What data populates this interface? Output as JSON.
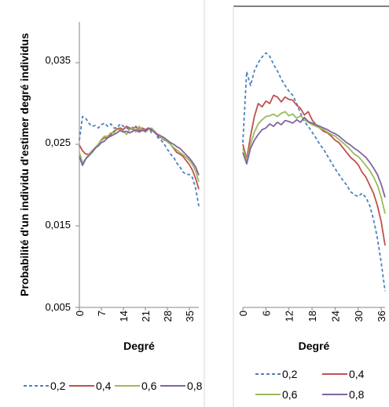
{
  "ylabel": "Probabilité d'un individu d'estimer degré  individus",
  "y_ticks": [
    "0,005",
    "0,015",
    "0,025",
    "0,035"
  ],
  "colors": {
    "0,2": "#4f81bd",
    "0,4": "#c0504d",
    "0,6": "#9bbb59",
    "0,8": "#8064a2"
  },
  "chart_data": [
    {
      "type": "line",
      "xlabel": "Degré",
      "x_ticks": [
        "0",
        "7",
        "14",
        "21",
        "28",
        "35"
      ],
      "xlim": [
        0,
        38
      ],
      "ylim": [
        0.005,
        0.04
      ],
      "legend": [
        "0,2",
        "0,4",
        "0,6",
        "0,8"
      ],
      "legend_layout": "bottom-single-row",
      "x": [
        0,
        1,
        2,
        3,
        4,
        5,
        6,
        7,
        8,
        9,
        10,
        11,
        12,
        13,
        14,
        15,
        16,
        17,
        18,
        19,
        20,
        21,
        22,
        23,
        24,
        25,
        26,
        27,
        28,
        29,
        30,
        31,
        32,
        33,
        34,
        35,
        36,
        37,
        38
      ],
      "series": [
        {
          "name": "0,2",
          "dash": "dashed",
          "values": [
            0.0255,
            0.0284,
            0.0282,
            0.0276,
            0.0272,
            0.0273,
            0.027,
            0.0274,
            0.0276,
            0.0272,
            0.0275,
            0.027,
            0.027,
            0.0275,
            0.0272,
            0.027,
            0.0268,
            0.0271,
            0.0265,
            0.027,
            0.0268,
            0.0266,
            0.027,
            0.0264,
            0.0265,
            0.0258,
            0.0255,
            0.025,
            0.0244,
            0.0238,
            0.0234,
            0.0227,
            0.0222,
            0.0216,
            0.0213,
            0.0213,
            0.0209,
            0.0196,
            0.0174
          ]
        },
        {
          "name": "0,4",
          "dash": "solid",
          "values": [
            0.0249,
            0.0242,
            0.0238,
            0.0238,
            0.024,
            0.0245,
            0.025,
            0.0255,
            0.0258,
            0.0258,
            0.0262,
            0.0266,
            0.0269,
            0.027,
            0.0268,
            0.0272,
            0.027,
            0.0268,
            0.0272,
            0.0266,
            0.027,
            0.0268,
            0.027,
            0.0267,
            0.0266,
            0.026,
            0.0258,
            0.0255,
            0.0254,
            0.025,
            0.0245,
            0.024,
            0.0238,
            0.0235,
            0.023,
            0.0225,
            0.0218,
            0.0208,
            0.0195
          ]
        },
        {
          "name": "0,6",
          "dash": "solid",
          "values": [
            0.024,
            0.0227,
            0.0232,
            0.0238,
            0.0242,
            0.0246,
            0.025,
            0.0256,
            0.026,
            0.026,
            0.0264,
            0.0264,
            0.0268,
            0.0268,
            0.0266,
            0.0262,
            0.0268,
            0.027,
            0.0265,
            0.0272,
            0.0268,
            0.0265,
            0.0268,
            0.027,
            0.0265,
            0.0262,
            0.0258,
            0.0256,
            0.0253,
            0.025,
            0.0246,
            0.0243,
            0.024,
            0.0237,
            0.0234,
            0.023,
            0.0225,
            0.0217,
            0.0204
          ]
        },
        {
          "name": "0,8",
          "dash": "solid",
          "values": [
            0.0235,
            0.0224,
            0.0232,
            0.0236,
            0.024,
            0.0245,
            0.0248,
            0.0252,
            0.0254,
            0.0258,
            0.026,
            0.0262,
            0.0264,
            0.0267,
            0.0265,
            0.0266,
            0.0264,
            0.0266,
            0.0268,
            0.0265,
            0.0267,
            0.0266,
            0.027,
            0.0268,
            0.0264,
            0.0262,
            0.026,
            0.0258,
            0.0255,
            0.0252,
            0.025,
            0.0247,
            0.0245,
            0.0241,
            0.0237,
            0.0233,
            0.0228,
            0.0222,
            0.0212
          ]
        }
      ]
    },
    {
      "type": "line",
      "xlabel": "Degré",
      "x_ticks": [
        "0",
        "6",
        "12",
        "18",
        "24",
        "30",
        "36"
      ],
      "xlim": [
        0,
        37
      ],
      "ylim": [
        0.005,
        0.04
      ],
      "legend": [
        "0,2",
        "0,4",
        "0,6",
        "0,8"
      ],
      "legend_layout": "bottom-two-rows",
      "x": [
        0,
        1,
        2,
        3,
        4,
        5,
        6,
        7,
        8,
        9,
        10,
        11,
        12,
        13,
        14,
        15,
        16,
        17,
        18,
        19,
        20,
        21,
        22,
        23,
        24,
        25,
        26,
        27,
        28,
        29,
        30,
        31,
        32,
        33,
        34,
        35,
        36,
        37
      ],
      "series": [
        {
          "name": "0,2",
          "dash": "dashed",
          "values": [
            0.0252,
            0.0339,
            0.0322,
            0.034,
            0.035,
            0.0357,
            0.0362,
            0.0358,
            0.0348,
            0.034,
            0.033,
            0.0322,
            0.0315,
            0.031,
            0.03,
            0.0288,
            0.0278,
            0.0272,
            0.0265,
            0.0258,
            0.025,
            0.0244,
            0.0236,
            0.0228,
            0.022,
            0.0213,
            0.0206,
            0.02,
            0.0192,
            0.0188,
            0.0186,
            0.019,
            0.0185,
            0.0175,
            0.0158,
            0.0135,
            0.0105,
            0.007
          ]
        },
        {
          "name": "0,4",
          "dash": "solid",
          "values": [
            0.025,
            0.0232,
            0.026,
            0.0284,
            0.03,
            0.0296,
            0.0303,
            0.03,
            0.031,
            0.0308,
            0.0302,
            0.0308,
            0.0305,
            0.0304,
            0.0298,
            0.0294,
            0.0286,
            0.029,
            0.028,
            0.0274,
            0.027,
            0.0266,
            0.0264,
            0.026,
            0.0255,
            0.0252,
            0.0246,
            0.024,
            0.0234,
            0.023,
            0.0225,
            0.0216,
            0.021,
            0.02,
            0.019,
            0.0175,
            0.0155,
            0.0126
          ]
        },
        {
          "name": "0,6",
          "dash": "solid",
          "values": [
            0.0245,
            0.023,
            0.025,
            0.0265,
            0.0275,
            0.028,
            0.0284,
            0.0285,
            0.0287,
            0.0284,
            0.0288,
            0.029,
            0.0285,
            0.0287,
            0.0282,
            0.0285,
            0.028,
            0.0277,
            0.0274,
            0.0272,
            0.027,
            0.0268,
            0.0265,
            0.0262,
            0.026,
            0.0256,
            0.0252,
            0.0248,
            0.0243,
            0.0238,
            0.0235,
            0.023,
            0.0224,
            0.0218,
            0.021,
            0.02,
            0.0185,
            0.0165
          ]
        },
        {
          "name": "0,8",
          "dash": "solid",
          "values": [
            0.024,
            0.0226,
            0.0245,
            0.0255,
            0.0262,
            0.0268,
            0.027,
            0.0275,
            0.0272,
            0.0277,
            0.0274,
            0.0279,
            0.0278,
            0.0276,
            0.028,
            0.0277,
            0.0283,
            0.0278,
            0.0276,
            0.0274,
            0.0272,
            0.027,
            0.0268,
            0.0265,
            0.0263,
            0.026,
            0.0256,
            0.0252,
            0.0249,
            0.0245,
            0.0242,
            0.0238,
            0.0234,
            0.0228,
            0.0221,
            0.0213,
            0.0201,
            0.0185
          ]
        }
      ]
    }
  ]
}
